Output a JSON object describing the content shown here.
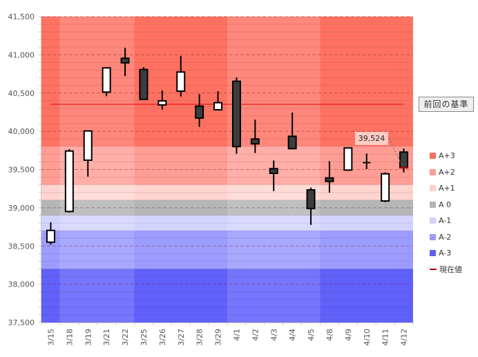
{
  "chart_data": {
    "type": "candlestick",
    "title": "",
    "xlabel": "",
    "ylabel": "",
    "ylim": [
      37500,
      41500
    ],
    "yticks": [
      37500,
      38000,
      38500,
      39000,
      39500,
      40000,
      40500,
      41000,
      41500
    ],
    "ytick_labels": [
      "37,500",
      "38,000",
      "38,500",
      "39,000",
      "39,500",
      "40,000",
      "40,500",
      "41,000",
      "41,500"
    ],
    "minor_grid_step": 100,
    "grid": true,
    "categories": [
      "3/15",
      "3/18",
      "3/19",
      "3/21",
      "3/22",
      "3/25",
      "3/26",
      "3/27",
      "3/28",
      "3/29",
      "4/1",
      "4/2",
      "4/3",
      "4/4",
      "4/5",
      "4/8",
      "4/9",
      "4/10",
      "4/11",
      "4/12"
    ],
    "week_groups": [
      1,
      4,
      5,
      5,
      5
    ],
    "candles": [
      {
        "date": "3/15",
        "open": 38550,
        "high": 38810,
        "low": 38517,
        "close": 38704
      },
      {
        "date": "3/18",
        "open": 38951,
        "high": 39766,
        "low": 38938,
        "close": 39742
      },
      {
        "date": "3/19",
        "open": 39622,
        "high": 40004,
        "low": 39408,
        "close": 40004
      },
      {
        "date": "3/21",
        "open": 40513,
        "high": 40829,
        "low": 40459,
        "close": 40829
      },
      {
        "date": "3/22",
        "open": 40955,
        "high": 41091,
        "low": 40721,
        "close": 40895
      },
      {
        "date": "3/25",
        "open": 40808,
        "high": 40838,
        "low": 40417,
        "close": 40417
      },
      {
        "date": "3/26",
        "open": 40344,
        "high": 40534,
        "low": 40284,
        "close": 40398
      },
      {
        "date": "3/27",
        "open": 40525,
        "high": 40985,
        "low": 40455,
        "close": 40775
      },
      {
        "date": "3/28",
        "open": 40329,
        "high": 40486,
        "low": 40058,
        "close": 40173
      },
      {
        "date": "3/29",
        "open": 40281,
        "high": 40525,
        "low": 40281,
        "close": 40374
      },
      {
        "date": "4/1",
        "open": 40654,
        "high": 40703,
        "low": 39706,
        "close": 39800
      },
      {
        "date": "4/2",
        "open": 39899,
        "high": 40152,
        "low": 39715,
        "close": 39836
      },
      {
        "date": "4/3",
        "open": 39511,
        "high": 39619,
        "low": 39218,
        "close": 39450
      },
      {
        "date": "4/4",
        "open": 39935,
        "high": 40245,
        "low": 39773,
        "close": 39773
      },
      {
        "date": "4/5",
        "open": 39234,
        "high": 39264,
        "low": 38776,
        "close": 38990
      },
      {
        "date": "4/8",
        "open": 39390,
        "high": 39610,
        "low": 39198,
        "close": 39345
      },
      {
        "date": "4/9",
        "open": 39493,
        "high": 39782,
        "low": 39484,
        "close": 39782
      },
      {
        "date": "4/10",
        "open": 39586,
        "high": 39710,
        "low": 39505,
        "close": 39590
      },
      {
        "date": "4/11",
        "open": 39089,
        "high": 39462,
        "low": 39074,
        "close": 39444
      },
      {
        "date": "4/12",
        "open": 39728,
        "high": 39775,
        "low": 39462,
        "close": 39524
      }
    ],
    "bands": [
      {
        "name": "A+3",
        "from": 39800,
        "to": 41500,
        "color": "#ff7262",
        "color_alt": "#ff877b"
      },
      {
        "name": "A+2",
        "from": 39300,
        "to": 39800,
        "color": "#ff9d94",
        "color_alt": "#ffafa8"
      },
      {
        "name": "A+1",
        "from": 39100,
        "to": 39300,
        "color": "#ffd4cf",
        "color_alt": "#ffdcd8"
      },
      {
        "name": "A 0",
        "from": 38900,
        "to": 39100,
        "color": "#b6b6b6",
        "color_alt": "#c0c0c0"
      },
      {
        "name": "A-1",
        "from": 38700,
        "to": 38900,
        "color": "#d4d4ff",
        "color_alt": "#dadaff"
      },
      {
        "name": "A-2",
        "from": 38200,
        "to": 38700,
        "color": "#9c9cff",
        "color_alt": "#a8a8ff"
      },
      {
        "name": "A-3",
        "from": 37500,
        "to": 38200,
        "color": "#6060fb",
        "color_alt": "#7575fd"
      }
    ],
    "reference_line": {
      "label": "前回の基準",
      "value": 40353,
      "color": "#e00000"
    },
    "current_value": {
      "label": "現在値",
      "value": 39524,
      "value_text": "39,524",
      "color": "#c00000"
    },
    "legend": [
      {
        "label": "A+3",
        "color": "#f86e62",
        "kind": "swatch"
      },
      {
        "label": "A+2",
        "color": "#fb9d95",
        "kind": "swatch"
      },
      {
        "label": "A+1",
        "color": "#fdd0cc",
        "kind": "swatch"
      },
      {
        "label": "A 0",
        "color": "#b4b4b4",
        "kind": "swatch"
      },
      {
        "label": "A-1",
        "color": "#d2d2fc",
        "kind": "swatch"
      },
      {
        "label": "A-2",
        "color": "#9c9cf8",
        "kind": "swatch"
      },
      {
        "label": "A-3",
        "color": "#5e5ef0",
        "kind": "swatch"
      },
      {
        "label": "現在値",
        "color": "#c00000",
        "kind": "line"
      }
    ],
    "legend_position": "right",
    "up_color": "#ffffff",
    "down_color": "#3d3d3d"
  }
}
